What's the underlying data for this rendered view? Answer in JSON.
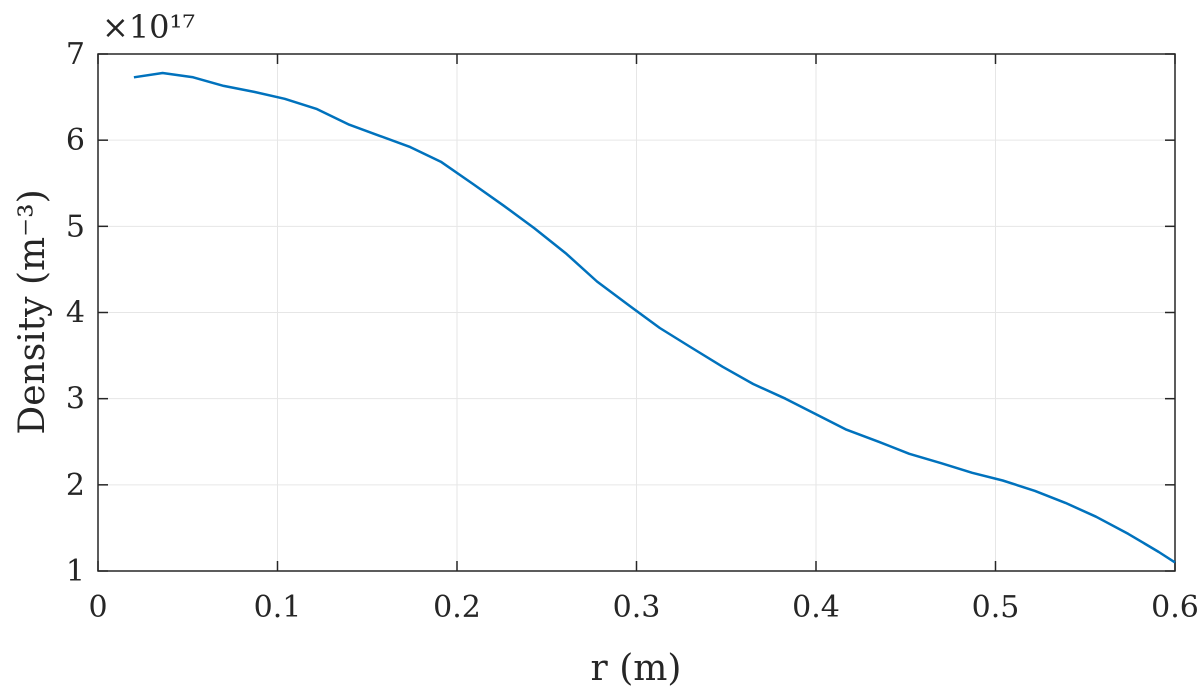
{
  "chart_data": {
    "type": "line",
    "xlabel": "r (m)",
    "ylabel": "Density (m⁻³)",
    "y_exponent_label": "×10¹⁷",
    "xlim": [
      0,
      0.6
    ],
    "ylim": [
      1,
      7
    ],
    "xticks": [
      0,
      0.1,
      0.2,
      0.3,
      0.4,
      0.5,
      0.6
    ],
    "xtick_labels": [
      "0",
      "0.1",
      "0.2",
      "0.3",
      "0.4",
      "0.5",
      "0.6"
    ],
    "yticks": [
      1,
      2,
      3,
      4,
      5,
      6,
      7
    ],
    "ytick_labels": [
      "1",
      "2",
      "3",
      "4",
      "5",
      "6",
      "7"
    ],
    "grid": true,
    "line_color": "#0072BD",
    "series": [
      {
        "x": [
          0.02,
          0.036,
          0.053,
          0.07,
          0.087,
          0.104,
          0.122,
          0.14,
          0.157,
          0.174,
          0.191,
          0.209,
          0.226,
          0.243,
          0.261,
          0.278,
          0.296,
          0.313,
          0.33,
          0.348,
          0.365,
          0.383,
          0.4,
          0.417,
          0.435,
          0.452,
          0.47,
          0.487,
          0.504,
          0.522,
          0.539,
          0.556,
          0.574,
          0.591,
          0.6
        ],
        "y": [
          6.73,
          6.78,
          6.73,
          6.63,
          6.56,
          6.48,
          6.36,
          6.18,
          6.05,
          5.92,
          5.75,
          5.49,
          5.24,
          4.98,
          4.68,
          4.36,
          4.08,
          3.82,
          3.6,
          3.37,
          3.17,
          3.0,
          2.82,
          2.64,
          2.5,
          2.36,
          2.25,
          2.14,
          2.05,
          1.93,
          1.79,
          1.63,
          1.43,
          1.22,
          1.1
        ]
      }
    ]
  }
}
